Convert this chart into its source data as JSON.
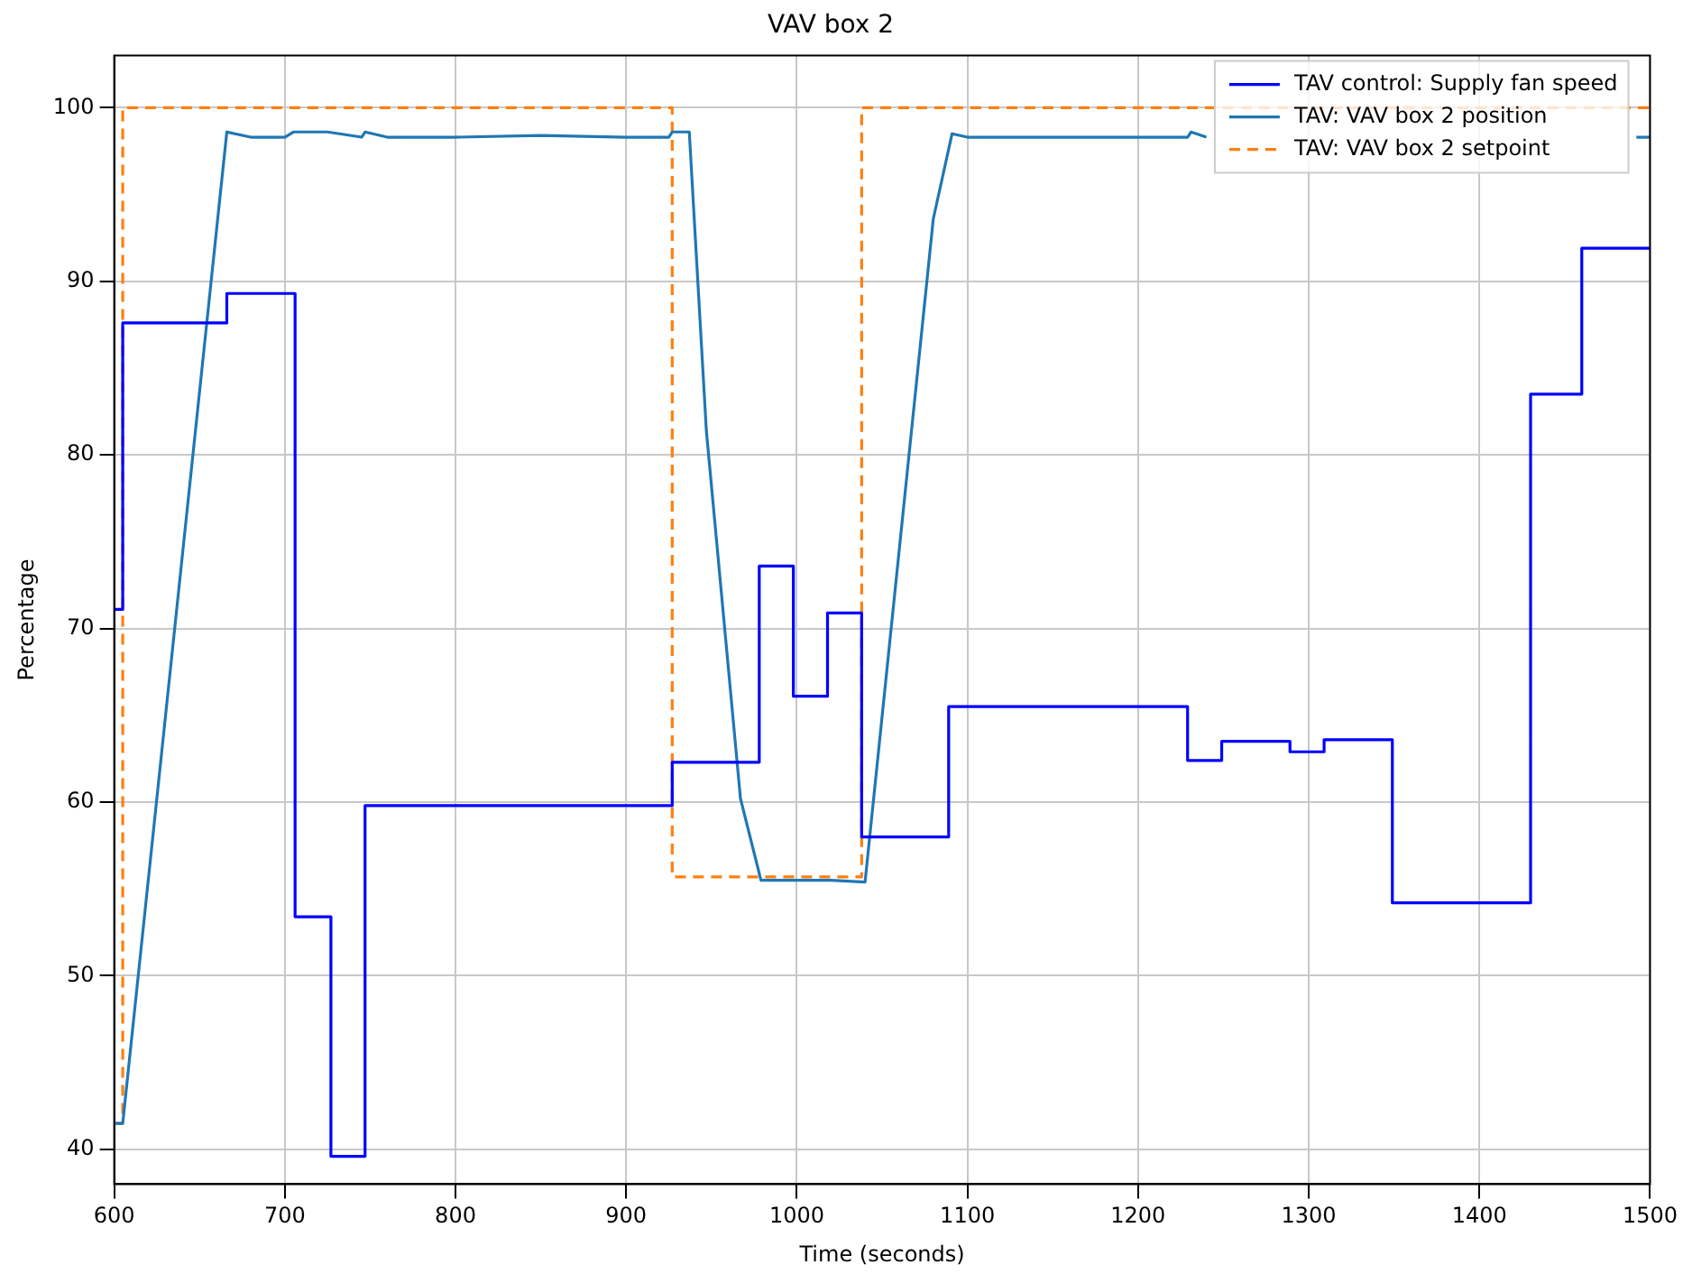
{
  "chart_data": {
    "type": "line",
    "title": "VAV box 2",
    "xlabel": "Time (seconds)",
    "ylabel": "Percentage",
    "xlim": [
      600,
      1500
    ],
    "xticks": [
      600,
      700,
      800,
      900,
      1000,
      1100,
      1200,
      1300,
      1400,
      1500
    ],
    "ylim": [
      38,
      103
    ],
    "yticks": [
      40,
      50,
      60,
      70,
      80,
      90,
      100
    ],
    "grid": true,
    "legend": "top right",
    "marker": "none",
    "series": [
      {
        "name": "TAV control: Supply fan speed",
        "type": "step",
        "color": "#0000ff",
        "line_style": "solid",
        "x": [
          600,
          605,
          666,
          706,
          727,
          747,
          927,
          978,
          998,
          1018,
          1038,
          1089,
          1229,
          1249,
          1289,
          1309,
          1349,
          1430,
          1460,
          1500
        ],
        "values": [
          71.1,
          87.6,
          89.3,
          53.4,
          39.6,
          59.8,
          62.3,
          73.6,
          66.1,
          70.9,
          58.0,
          65.5,
          62.4,
          63.5,
          62.9,
          63.6,
          54.2,
          83.5,
          91.9,
          91.9
        ]
      },
      {
        "name": "TAV: VAV box 2 position",
        "type": "line",
        "color": "#1f77b4",
        "line_style": "solid",
        "x": [
          600,
          605,
          666,
          680,
          700,
          705,
          725,
          745,
          747,
          760,
          800,
          850,
          900,
          925,
          927,
          937,
          947,
          967,
          979,
          1000,
          1020,
          1040,
          1080,
          1091,
          1100,
          1150,
          1200,
          1229,
          1231,
          1240,
          1300,
          1350,
          1400,
          1450,
          1492,
          1500
        ],
        "values": [
          41.5,
          41.5,
          98.6,
          98.3,
          98.3,
          98.6,
          98.6,
          98.3,
          98.6,
          98.3,
          98.3,
          98.4,
          98.3,
          98.3,
          98.6,
          98.6,
          81.4,
          60.2,
          55.5,
          55.5,
          55.5,
          55.4,
          93.6,
          98.5,
          98.3,
          98.3,
          98.3,
          98.3,
          98.6,
          98.3,
          null,
          null,
          null,
          null,
          98.3,
          98.3
        ]
      },
      {
        "name": "TAV: VAV box 2 setpoint",
        "type": "step",
        "color": "#ff7f0e",
        "line_style": "dashed",
        "x": [
          600,
          605,
          927,
          1038,
          1500
        ],
        "values": [
          41.5,
          100,
          55.7,
          100,
          100
        ]
      }
    ]
  }
}
